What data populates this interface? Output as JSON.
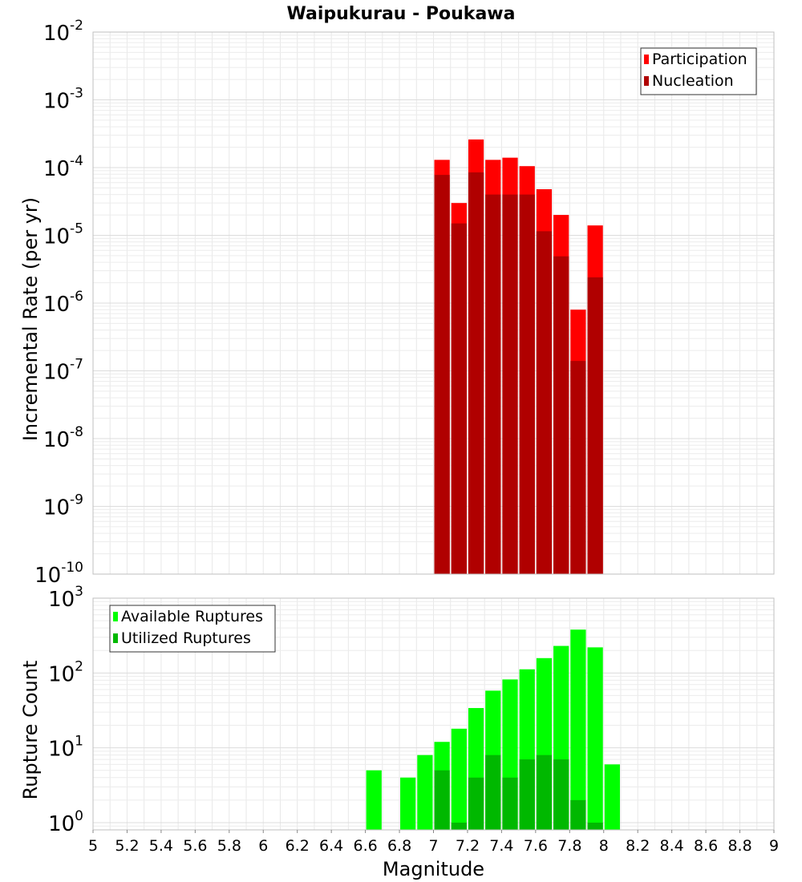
{
  "chart_data": [
    {
      "type": "bar",
      "title": "Waipukurau - Poukawa",
      "ylabel": "Incremental Rate (per yr)",
      "xlabel": "",
      "xlim": [
        5,
        9
      ],
      "ylim": [
        1e-10,
        0.01
      ],
      "y_scale": "log",
      "grid": true,
      "legend_position": "top-right",
      "bar_width": 0.1,
      "y_tick_exponents": [
        "-10",
        "-9",
        "-8",
        "-7",
        "-6",
        "-5",
        "-4",
        "-3",
        "-2"
      ],
      "x": [
        7.05,
        7.15,
        7.25,
        7.35,
        7.45,
        7.55,
        7.65,
        7.75,
        7.85,
        7.95
      ],
      "series": [
        {
          "name": "Participation",
          "color": "#ff0000",
          "values": [
            0.00013,
            3e-05,
            0.00026,
            0.00013,
            0.00014,
            0.000105,
            4.8e-05,
            2e-05,
            8e-07,
            1.4e-05
          ]
        },
        {
          "name": "Nucleation",
          "color": "#b00000",
          "values": [
            7.8e-05,
            1.5e-05,
            8.5e-05,
            4e-05,
            4e-05,
            4e-05,
            1.15e-05,
            4.9e-06,
            1.4e-07,
            2.4e-06
          ]
        }
      ]
    },
    {
      "type": "bar",
      "title": "",
      "ylabel": "Rupture Count",
      "xlabel": "Magnitude",
      "xlim": [
        5,
        9
      ],
      "ylim": [
        0.8,
        1000
      ],
      "y_scale": "log",
      "grid": true,
      "legend_position": "top-left",
      "bar_width": 0.1,
      "y_tick_exponents": [
        "0",
        "1",
        "2",
        "3"
      ],
      "x_ticks": [
        "5",
        "5.2",
        "5.4",
        "5.6",
        "5.8",
        "6",
        "6.2",
        "6.4",
        "6.6",
        "6.8",
        "7",
        "7.2",
        "7.4",
        "7.6",
        "7.8",
        "8",
        "8.2",
        "8.4",
        "8.6",
        "8.8",
        "9"
      ],
      "x": [
        6.65,
        6.85,
        6.95,
        7.05,
        7.15,
        7.25,
        7.35,
        7.45,
        7.55,
        7.65,
        7.75,
        7.85,
        7.95,
        8.05
      ],
      "series": [
        {
          "name": "Available Ruptures",
          "color": "#00ff00",
          "values": [
            5,
            4,
            8,
            12,
            18,
            34,
            58,
            82,
            112,
            158,
            230,
            380,
            220,
            6
          ]
        },
        {
          "name": "Utilized Ruptures",
          "color": "#00b800",
          "values": [
            null,
            null,
            null,
            5,
            1,
            4,
            8,
            4,
            7,
            8,
            7,
            2,
            1,
            null
          ]
        }
      ]
    }
  ]
}
